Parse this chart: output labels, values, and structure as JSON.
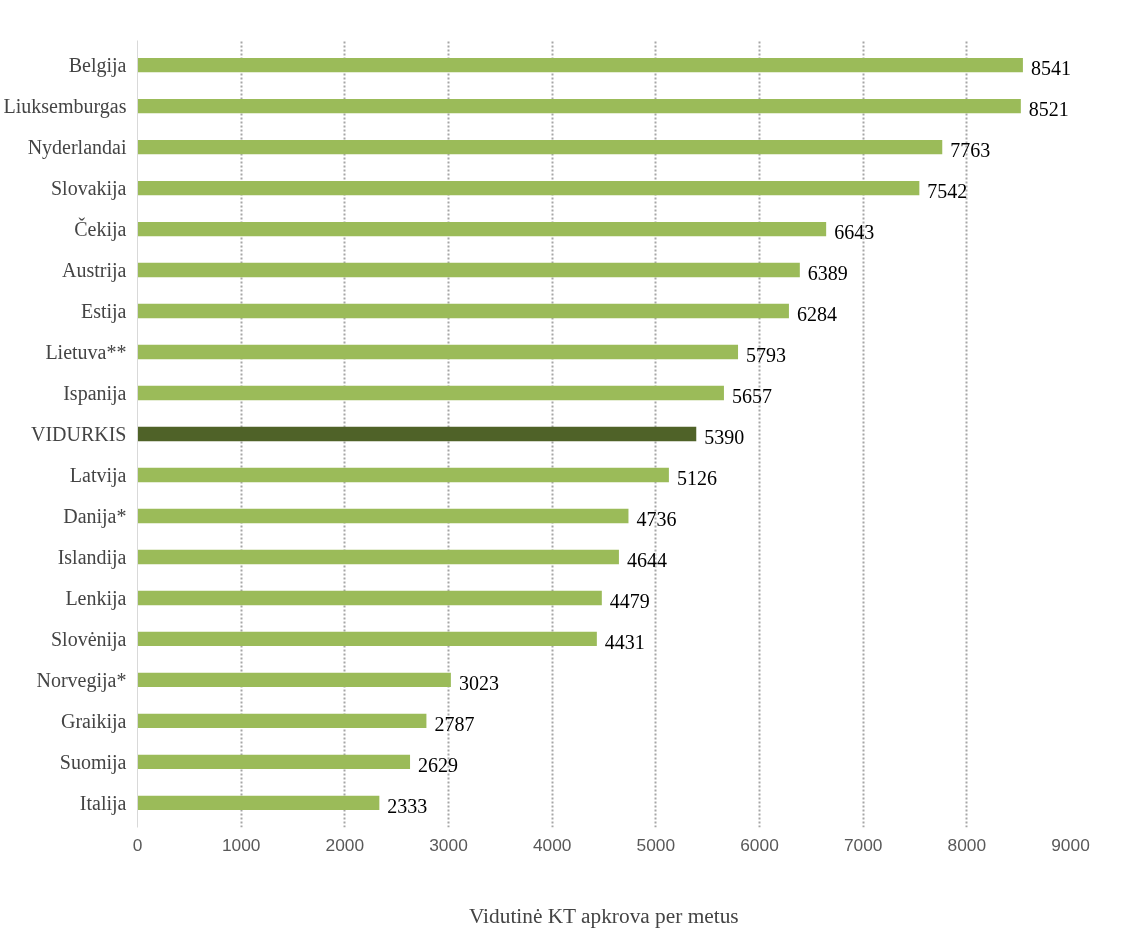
{
  "chart_data": {
    "type": "bar",
    "orientation": "horizontal",
    "xlabel": "Vidutinė KT apkrova per metus",
    "categories": [
      "Belgija",
      "Liuksemburgas",
      "Nyderlandai",
      "Slovakija",
      "Čekija",
      "Austrija",
      "Estija",
      "Lietuva**",
      "Ispanija",
      "VIDURKIS",
      "Latvija",
      "Danija*",
      "Islandija",
      "Lenkija",
      "Slovėnija",
      "Norvegija*",
      "Graikija",
      "Suomija",
      "Italija"
    ],
    "values": [
      8541,
      8521,
      7763,
      7542,
      6643,
      6389,
      6284,
      5793,
      5657,
      5390,
      5126,
      4736,
      4644,
      4479,
      4431,
      3023,
      2787,
      2629,
      2333
    ],
    "colors": [
      "#9bbb59",
      "#9bbb59",
      "#9bbb59",
      "#9bbb59",
      "#9bbb59",
      "#9bbb59",
      "#9bbb59",
      "#9bbb59",
      "#9bbb59",
      "#4f6228",
      "#9bbb59",
      "#9bbb59",
      "#9bbb59",
      "#9bbb59",
      "#9bbb59",
      "#9bbb59",
      "#9bbb59",
      "#9bbb59",
      "#9bbb59"
    ],
    "xlim": [
      0,
      9000
    ],
    "xticks": [
      0,
      1000,
      2000,
      3000,
      4000,
      5000,
      6000,
      7000,
      8000,
      9000
    ],
    "grid": "x",
    "data_labels": true
  }
}
